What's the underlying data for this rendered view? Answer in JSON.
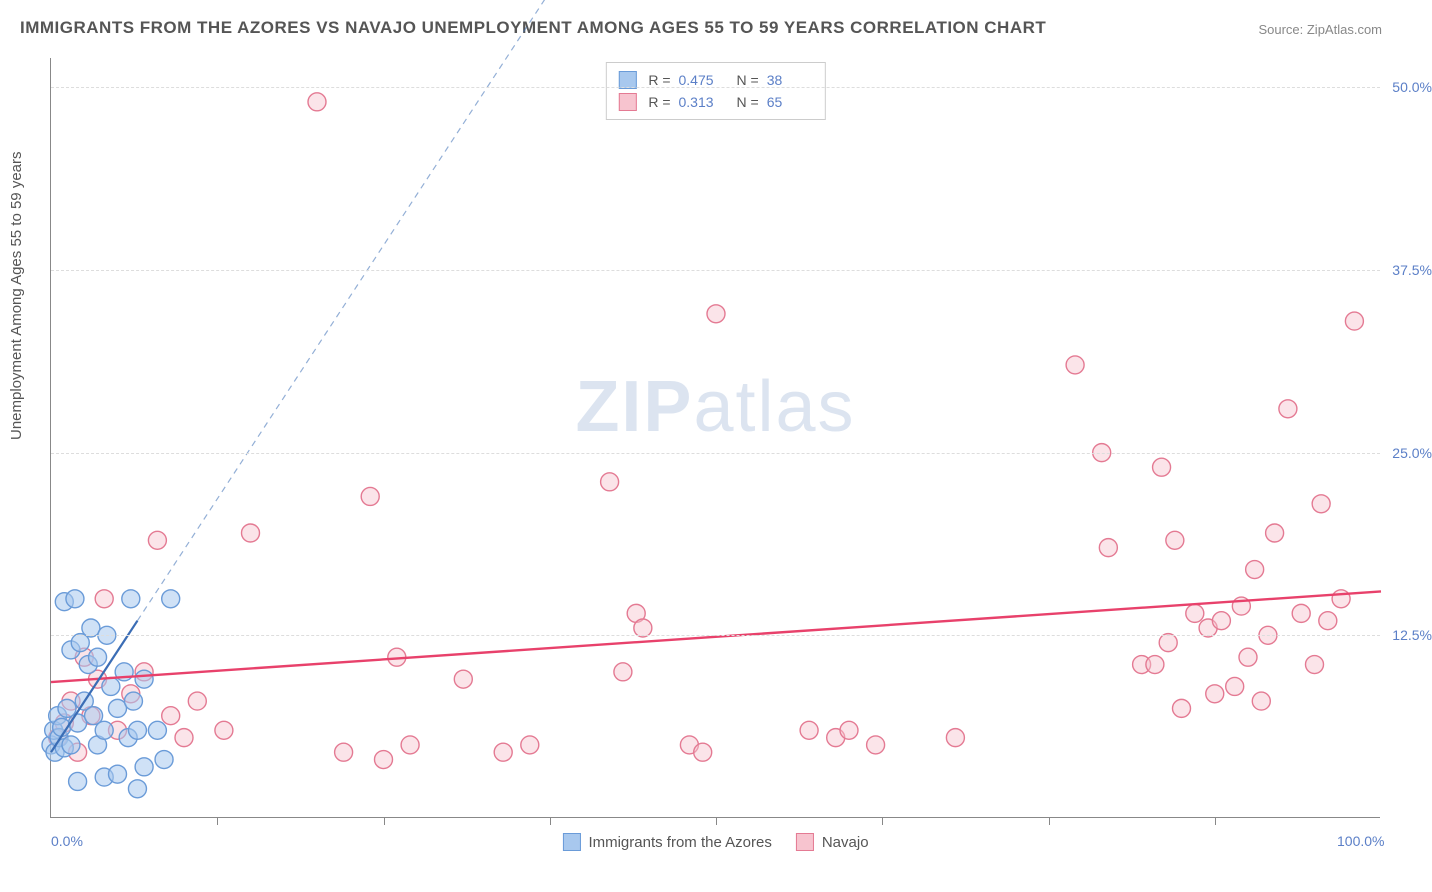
{
  "title": "IMMIGRANTS FROM THE AZORES VS NAVAJO UNEMPLOYMENT AMONG AGES 55 TO 59 YEARS CORRELATION CHART",
  "source": "Source: ZipAtlas.com",
  "ylabel": "Unemployment Among Ages 55 to 59 years",
  "watermark_a": "ZIP",
  "watermark_b": "atlas",
  "chart": {
    "type": "scatter",
    "xlim": [
      0,
      100
    ],
    "ylim": [
      0,
      52
    ],
    "x_ticks": [
      0,
      50,
      100
    ],
    "x_tick_labels": [
      "0.0%",
      "",
      "100.0%"
    ],
    "x_minor_ticks": [
      12.5,
      25,
      37.5,
      50,
      62.5,
      75,
      87.5
    ],
    "y_ticks": [
      12.5,
      25.0,
      37.5,
      50.0
    ],
    "y_tick_labels": [
      "12.5%",
      "25.0%",
      "37.5%",
      "50.0%"
    ],
    "background_color": "#ffffff",
    "grid_color": "#dddddd",
    "axis_color": "#888888",
    "marker_radius": 9,
    "marker_stroke_width": 1.4,
    "series": [
      {
        "name": "Immigrants from the Azores",
        "fill": "#a8c8ee",
        "stroke": "#6a9bd8",
        "fill_opacity": 0.55,
        "r_value": "0.475",
        "n_value": "38",
        "trend": {
          "x1": 0,
          "y1": 4.5,
          "x2": 6.5,
          "y2": 13.5,
          "dashed_to_x": 40,
          "dashed_to_y": 60,
          "color": "#3b6db5",
          "width": 2.2
        },
        "points": [
          [
            0.0,
            5.0
          ],
          [
            0.2,
            6.0
          ],
          [
            0.3,
            4.5
          ],
          [
            0.5,
            7.0
          ],
          [
            0.6,
            5.5
          ],
          [
            0.8,
            6.2
          ],
          [
            1.0,
            4.8
          ],
          [
            1.0,
            14.8
          ],
          [
            1.2,
            7.5
          ],
          [
            1.5,
            11.5
          ],
          [
            1.5,
            5.0
          ],
          [
            1.8,
            15.0
          ],
          [
            2.0,
            6.5
          ],
          [
            2.0,
            2.5
          ],
          [
            2.2,
            12.0
          ],
          [
            2.5,
            8.0
          ],
          [
            2.8,
            10.5
          ],
          [
            3.0,
            13.0
          ],
          [
            3.2,
            7.0
          ],
          [
            3.5,
            11.0
          ],
          [
            3.5,
            5.0
          ],
          [
            4.0,
            6.0
          ],
          [
            4.0,
            2.8
          ],
          [
            4.2,
            12.5
          ],
          [
            4.5,
            9.0
          ],
          [
            5.0,
            7.5
          ],
          [
            5.0,
            3.0
          ],
          [
            5.5,
            10.0
          ],
          [
            5.8,
            5.5
          ],
          [
            6.0,
            15.0
          ],
          [
            6.2,
            8.0
          ],
          [
            6.5,
            6.0
          ],
          [
            6.5,
            2.0
          ],
          [
            7.0,
            9.5
          ],
          [
            7.0,
            3.5
          ],
          [
            8.0,
            6.0
          ],
          [
            8.5,
            4.0
          ],
          [
            9.0,
            15.0
          ]
        ]
      },
      {
        "name": "Navajo",
        "fill": "#f7c4cf",
        "stroke": "#e47a93",
        "fill_opacity": 0.45,
        "r_value": "0.313",
        "n_value": "65",
        "trend": {
          "x1": 0,
          "y1": 9.3,
          "x2": 100,
          "y2": 15.5,
          "color": "#e8416b",
          "width": 2.4
        },
        "points": [
          [
            0.5,
            5.5
          ],
          [
            1.0,
            6.5
          ],
          [
            1.5,
            8.0
          ],
          [
            2.0,
            4.5
          ],
          [
            2.5,
            11.0
          ],
          [
            3.0,
            7.0
          ],
          [
            3.5,
            9.5
          ],
          [
            4.0,
            15.0
          ],
          [
            5.0,
            6.0
          ],
          [
            6.0,
            8.5
          ],
          [
            7.0,
            10.0
          ],
          [
            8.0,
            19.0
          ],
          [
            9.0,
            7.0
          ],
          [
            10.0,
            5.5
          ],
          [
            11.0,
            8.0
          ],
          [
            13.0,
            6.0
          ],
          [
            15.0,
            19.5
          ],
          [
            20.0,
            49.0
          ],
          [
            22.0,
            4.5
          ],
          [
            24.0,
            22.0
          ],
          [
            25.0,
            4.0
          ],
          [
            26.0,
            11.0
          ],
          [
            27.0,
            5.0
          ],
          [
            31.0,
            9.5
          ],
          [
            34.0,
            4.5
          ],
          [
            36.0,
            5.0
          ],
          [
            42.0,
            23.0
          ],
          [
            43.0,
            10.0
          ],
          [
            44.0,
            14.0
          ],
          [
            44.5,
            13.0
          ],
          [
            48.0,
            5.0
          ],
          [
            49.0,
            4.5
          ],
          [
            50.0,
            34.5
          ],
          [
            57.0,
            6.0
          ],
          [
            59.0,
            5.5
          ],
          [
            60.0,
            6.0
          ],
          [
            62.0,
            5.0
          ],
          [
            68.0,
            5.5
          ],
          [
            77.0,
            31.0
          ],
          [
            79.0,
            25.0
          ],
          [
            79.5,
            18.5
          ],
          [
            82.0,
            10.5
          ],
          [
            83.0,
            10.5
          ],
          [
            83.5,
            24.0
          ],
          [
            84.0,
            12.0
          ],
          [
            84.5,
            19.0
          ],
          [
            85.0,
            7.5
          ],
          [
            86.0,
            14.0
          ],
          [
            87.0,
            13.0
          ],
          [
            87.5,
            8.5
          ],
          [
            88.0,
            13.5
          ],
          [
            89.0,
            9.0
          ],
          [
            89.5,
            14.5
          ],
          [
            90.0,
            11.0
          ],
          [
            90.5,
            17.0
          ],
          [
            91.0,
            8.0
          ],
          [
            91.5,
            12.5
          ],
          [
            92.0,
            19.5
          ],
          [
            93.0,
            28.0
          ],
          [
            94.0,
            14.0
          ],
          [
            95.0,
            10.5
          ],
          [
            95.5,
            21.5
          ],
          [
            96.0,
            13.5
          ],
          [
            97.0,
            15.0
          ],
          [
            98.0,
            34.0
          ]
        ]
      }
    ]
  },
  "legend_bottom_labels": [
    "Immigrants from the Azores",
    "Navajo"
  ]
}
